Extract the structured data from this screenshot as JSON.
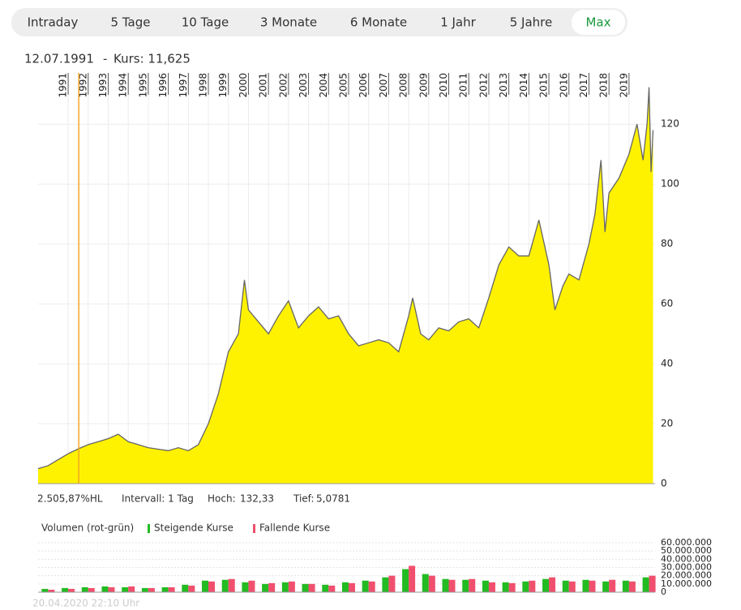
{
  "tabs": [
    "Intraday",
    "5 Tage",
    "10 Tage",
    "3 Monate",
    "6 Monate",
    "1 Jahr",
    "5 Jahre",
    "Max"
  ],
  "active_tab": 7,
  "header": {
    "date": "12.07.1991",
    "separator": "-",
    "price": "Kurs: 11,625"
  },
  "stats": {
    "change": "2.505,87%HL",
    "interval": "Intervall: 1 Tag",
    "high_label": "Hoch:",
    "high": "132,33",
    "low_label": "Tief:",
    "low": "5,0781"
  },
  "footer": "20.04.2020 22:10 Uhr",
  "chart_data": [
    {
      "type": "area",
      "color": "#fff200",
      "line_color": "#666666",
      "cursor_x": 1991.53,
      "cursor_color": "#f5a623",
      "grid": true,
      "x": [
        1989.5,
        1990,
        1990.5,
        1991,
        1991.5,
        1992,
        1992.5,
        1993,
        1993.5,
        1994,
        1994.5,
        1995,
        1995.5,
        1996,
        1996.5,
        1997,
        1997.5,
        1998,
        1998.5,
        1999,
        1999.5,
        1999.8,
        2000,
        2000.5,
        2001,
        2001.5,
        2002,
        2002.5,
        2003,
        2003.5,
        2004,
        2004.5,
        2005,
        2005.5,
        2006,
        2006.5,
        2007,
        2007.5,
        2008,
        2008.2,
        2008.6,
        2009,
        2009.5,
        2010,
        2010.5,
        2011,
        2011.5,
        2012,
        2012.5,
        2013,
        2013.5,
        2014,
        2014.5,
        2015,
        2015.3,
        2015.7,
        2016,
        2016.5,
        2017,
        2017.3,
        2017.6,
        2017.8,
        2018,
        2018.5,
        2019,
        2019.4,
        2019.7,
        2019.9,
        2020,
        2020.1,
        2020.2
      ],
      "values": [
        5,
        6,
        8,
        10,
        11.6,
        13,
        14,
        15,
        16.5,
        14,
        13,
        12,
        11.5,
        11,
        12,
        11,
        13,
        20,
        30,
        44,
        50,
        68,
        58,
        54,
        50,
        56,
        61,
        52,
        56,
        59,
        55,
        56,
        50,
        46,
        47,
        48,
        47,
        44,
        56,
        62,
        50,
        48,
        52,
        51,
        54,
        55,
        52,
        62,
        73,
        79,
        76,
        76,
        88,
        73,
        58,
        66,
        70,
        68,
        80,
        90,
        108,
        84,
        97,
        102,
        110,
        120,
        108,
        120,
        132.33,
        104,
        118
      ],
      "xlim": [
        1989.5,
        2020.3
      ],
      "xticks": [
        1991,
        1992,
        1993,
        1994,
        1995,
        1996,
        1997,
        1998,
        1999,
        2000,
        2001,
        2002,
        2003,
        2004,
        2005,
        2006,
        2007,
        2008,
        2009,
        2010,
        2011,
        2012,
        2013,
        2014,
        2015,
        2016,
        2017,
        2018,
        2019
      ],
      "ylim": [
        0,
        132.5
      ],
      "yticks": [
        0,
        20,
        40,
        60,
        80,
        100,
        120
      ]
    },
    {
      "type": "bar",
      "title": "Volumen (rot-grün)",
      "grid": true,
      "x": [
        1990,
        1991,
        1992,
        1993,
        1994,
        1995,
        1996,
        1997,
        1998,
        1999,
        2000,
        2001,
        2002,
        2003,
        2004,
        2005,
        2006,
        2007,
        2008,
        2009,
        2010,
        2011,
        2012,
        2013,
        2014,
        2015,
        2016,
        2017,
        2018,
        2019,
        2020
      ],
      "series": [
        {
          "name": "Steigende Kurse",
          "color": "#22bb22",
          "values": [
            4000000,
            5000000,
            6000000,
            7000000,
            6000000,
            5000000,
            6000000,
            9000000,
            14000000,
            15000000,
            12000000,
            10000000,
            12000000,
            10000000,
            9000000,
            12000000,
            14000000,
            18000000,
            28000000,
            22000000,
            16000000,
            15000000,
            14000000,
            12000000,
            13000000,
            16000000,
            14000000,
            15000000,
            13000000,
            14000000,
            18000000
          ]
        },
        {
          "name": "Fallende Kurse",
          "color": "#f0506e",
          "values": [
            3000000,
            4000000,
            5000000,
            6000000,
            7000000,
            5000000,
            6000000,
            8000000,
            13000000,
            16000000,
            14000000,
            11000000,
            13000000,
            10000000,
            8000000,
            11000000,
            13000000,
            20000000,
            32000000,
            20000000,
            15000000,
            16000000,
            12000000,
            11000000,
            14000000,
            18000000,
            13000000,
            14000000,
            15000000,
            13000000,
            20000000
          ]
        }
      ],
      "xlim": [
        1989.5,
        2020.3
      ],
      "ylim": [
        0,
        60000000
      ],
      "yticks": [
        0,
        {
          "value": 10000000,
          "label": "10.000.000"
        },
        {
          "value": 20000000,
          "label": "20.000.000"
        },
        {
          "value": 30000000,
          "label": "30.000.000"
        },
        {
          "value": 40000000,
          "label": "40.000.000"
        },
        {
          "value": 50000000,
          "label": "50.000.000"
        },
        {
          "value": 60000000,
          "label": "60.000.000"
        }
      ]
    }
  ]
}
